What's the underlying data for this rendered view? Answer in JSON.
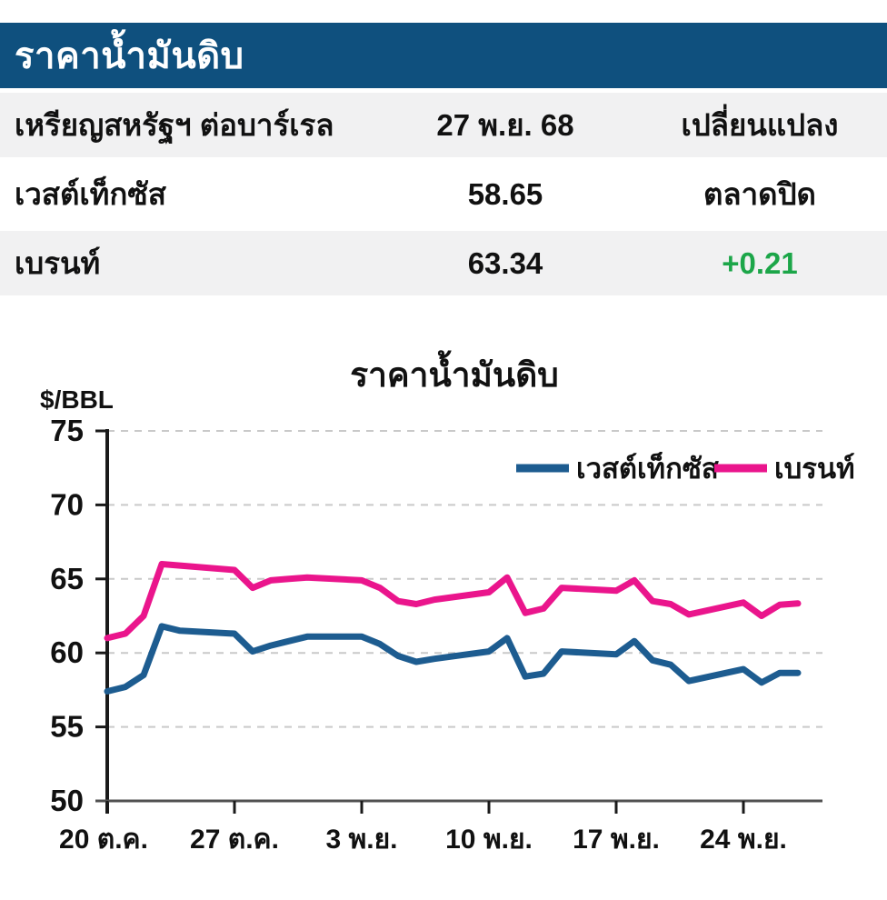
{
  "title_bar": {
    "title": "ราคาน้ำมันดิบ",
    "bg_color": "#0f507e",
    "text_color": "#ffffff"
  },
  "table": {
    "header": {
      "unit_label": "เหรียญสหรัฐฯ ต่อบาร์เรล",
      "date": "27 พ.ย. 68",
      "change_label": "เปลี่ยนแปลง",
      "bg_color": "#f1f1f2"
    },
    "rows": [
      {
        "name": "เวสต์เท็กซัส",
        "price": "58.65",
        "change": "ตลาดปิด",
        "change_color": "#111111",
        "bg_color": "#ffffff"
      },
      {
        "name": "เบรนท์",
        "price": "63.34",
        "change": "+0.21",
        "change_color": "#1ca649",
        "bg_color": "#f1f1f2"
      }
    ]
  },
  "colors": {
    "positive_green": "#1ca649",
    "grid_gray": "#c9c9c9",
    "axis_black": "#1a1a1a",
    "baseline_gray": "#505050"
  },
  "chart_data": {
    "type": "line",
    "title": "ราคาน้ำมันดิบ",
    "ylabel": "$/BBL",
    "ylim": [
      50,
      75
    ],
    "yticks": [
      50,
      55,
      60,
      65,
      70,
      75
    ],
    "grid": "dashed-horizontal",
    "legend_position": "top-inside",
    "x_tick_labels": [
      "20 ต.ค.",
      "27 ต.ค.",
      "3 พ.ย.",
      "10 พ.ย.",
      "17 พ.ย.",
      "24 พ.ย."
    ],
    "x_tick_day_offsets": [
      0,
      7,
      14,
      21,
      28,
      35
    ],
    "x_day_offsets": [
      0,
      1,
      2,
      3,
      4,
      7,
      8,
      9,
      10,
      11,
      14,
      15,
      16,
      17,
      18,
      21,
      22,
      23,
      24,
      25,
      28,
      29,
      30,
      31,
      32,
      35,
      36,
      37,
      38
    ],
    "x_range_days": [
      0,
      39.3
    ],
    "series": [
      {
        "name": "เวสต์เท็กซัส",
        "color": "#1d5c90",
        "values": [
          57.4,
          57.7,
          58.5,
          61.8,
          61.5,
          61.3,
          60.1,
          60.5,
          60.8,
          61.1,
          61.1,
          60.6,
          59.8,
          59.4,
          59.6,
          60.1,
          61.0,
          58.4,
          58.6,
          60.1,
          59.9,
          60.8,
          59.5,
          59.2,
          58.1,
          58.9,
          58.0,
          58.65,
          58.65
        ]
      },
      {
        "name": "เบรนท์",
        "color": "#ea158c",
        "values": [
          61.0,
          61.3,
          62.5,
          66.0,
          65.9,
          65.6,
          64.4,
          64.9,
          65.0,
          65.1,
          64.9,
          64.4,
          63.5,
          63.3,
          63.6,
          64.1,
          65.1,
          62.7,
          63.0,
          64.4,
          64.2,
          64.9,
          63.5,
          63.3,
          62.6,
          63.4,
          62.5,
          63.25,
          63.34
        ]
      }
    ]
  }
}
